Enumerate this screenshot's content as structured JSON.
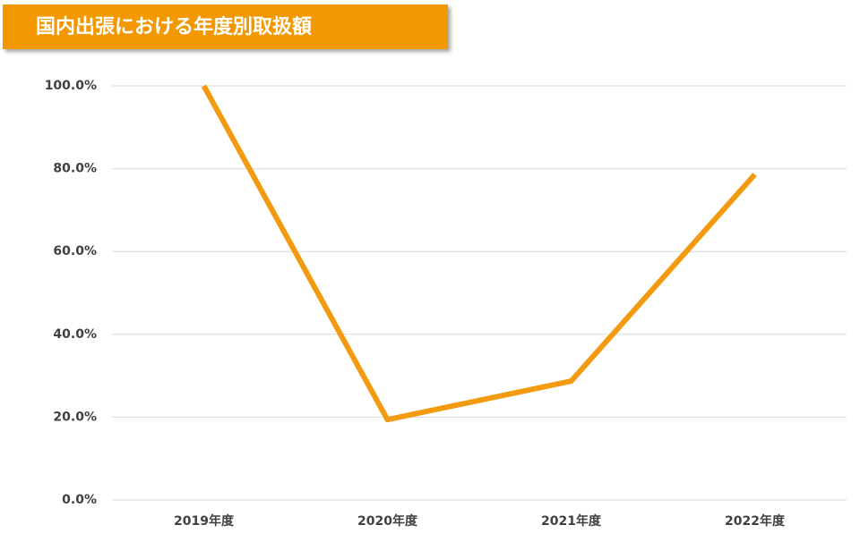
{
  "chart_data": {
    "type": "line",
    "title": "国内出張における年度別取扱額",
    "categories": [
      "2019年度",
      "2020年度",
      "2021年度",
      "2022年度"
    ],
    "values": [
      100,
      19.4,
      28.7,
      78.6
    ],
    "color": "#f29b11",
    "ylim": [
      0,
      100
    ],
    "yticks": [
      {
        "value": 0,
        "label": "0.0%"
      },
      {
        "value": 20,
        "label": "20.0%"
      },
      {
        "value": 40,
        "label": "40.0%"
      },
      {
        "value": 60,
        "label": "60.0%"
      },
      {
        "value": 80,
        "label": "80.0%"
      },
      {
        "value": 100,
        "label": "100.0%"
      }
    ],
    "grid": true
  }
}
